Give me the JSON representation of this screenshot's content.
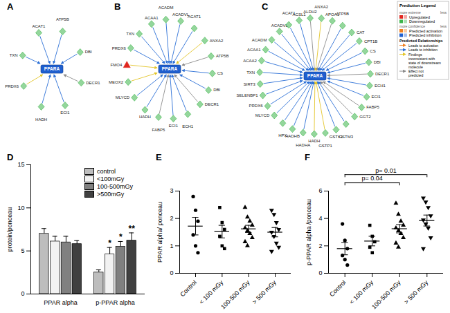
{
  "networks": [
    {
      "panel": "A",
      "center": {
        "label": "PPARA",
        "state": "Predicted inhibition"
      },
      "nodes": [
        {
          "label": "ACAT1",
          "state": "Downregulated",
          "relation": "Leads to inhibition"
        },
        {
          "label": "ATP5B",
          "state": "Downregulated",
          "relation": "Leads to inhibition"
        },
        {
          "label": "DBI",
          "state": "Downregulated",
          "relation": "Leads to inhibition"
        },
        {
          "label": "DECR1",
          "state": "Downregulated",
          "relation": "Effect not predicted"
        },
        {
          "label": "ECI1",
          "state": "Downregulated",
          "relation": "Leads to inhibition"
        },
        {
          "label": "HADH",
          "state": "Downregulated",
          "relation": "Leads to inhibition"
        },
        {
          "label": "PRDX6",
          "state": "Downregulated",
          "relation": "Findings inconsistent with state of downstream molecule"
        },
        {
          "label": "TXN",
          "state": "Downregulated",
          "relation": "Leads to inhibition"
        }
      ]
    },
    {
      "panel": "B",
      "center": {
        "label": "PPARA",
        "state": "Predicted inhibition"
      },
      "nodes": [
        {
          "label": "ACAA1",
          "state": "Downregulated",
          "relation": "Leads to inhibition"
        },
        {
          "label": "ACADM",
          "state": "Downregulated",
          "relation": "Leads to inhibition"
        },
        {
          "label": "ACADVL",
          "state": "Downregulated",
          "relation": "Leads to inhibition"
        },
        {
          "label": "ACAT1",
          "state": "Downregulated",
          "relation": "Leads to inhibition"
        },
        {
          "label": "ANXA2",
          "state": "Downregulated",
          "relation": "Findings inconsistent with state of downstream molecule"
        },
        {
          "label": "ATP5B",
          "state": "Downregulated",
          "relation": "Effect not predicted"
        },
        {
          "label": "CS",
          "state": "Downregulated",
          "relation": "Leads to inhibition"
        },
        {
          "label": "DBI",
          "state": "Downregulated",
          "relation": "Leads to inhibition"
        },
        {
          "label": "DECR1",
          "state": "Downregulated",
          "relation": "Effect not predicted"
        },
        {
          "label": "ECH1",
          "state": "Downregulated",
          "relation": "Leads to inhibition"
        },
        {
          "label": "ECI1",
          "state": "Downregulated",
          "relation": "Leads to inhibition"
        },
        {
          "label": "FABP5",
          "state": "Downregulated",
          "relation": "Effect not predicted"
        },
        {
          "label": "HADH",
          "state": "Downregulated",
          "relation": "Leads to inhibition"
        },
        {
          "label": "MLYCD",
          "state": "Downregulated",
          "relation": "Leads to inhibition"
        },
        {
          "label": "MEOX2",
          "state": "Downregulated",
          "relation": "Findings inconsistent with state of downstream molecule"
        },
        {
          "label": "FMO4",
          "state": "Upregulated",
          "relation": "Findings inconsistent with state of downstream molecule"
        },
        {
          "label": "PRDX6",
          "state": "Downregulated",
          "relation": "Leads to inhibition"
        },
        {
          "label": "TXN",
          "state": "Downregulated",
          "relation": "Leads to inhibition"
        }
      ]
    },
    {
      "panel": "C",
      "center": {
        "label": "PPARA",
        "state": "Predicted inhibition"
      },
      "nodes": [
        {
          "label": "ALDH2",
          "state": "Downregulated",
          "relation": "Effect not predicted"
        },
        {
          "label": "ANXA2",
          "state": "Downregulated",
          "relation": "Findings inconsistent with state of downstream molecule"
        },
        {
          "label": "APOA1",
          "state": "Downregulated",
          "relation": "Effect not predicted"
        },
        {
          "label": "ATP5B",
          "state": "Downregulated",
          "relation": "Leads to inhibition"
        },
        {
          "label": "CAT",
          "state": "Downregulated",
          "relation": "Leads to inhibition"
        },
        {
          "label": "CPT1B",
          "state": "Downregulated",
          "relation": "Leads to inhibition"
        },
        {
          "label": "CS",
          "state": "Downregulated",
          "relation": "Leads to inhibition"
        },
        {
          "label": "DBI",
          "state": "Downregulated",
          "relation": "Leads to inhibition"
        },
        {
          "label": "DECR1",
          "state": "Downregulated",
          "relation": "Effect not predicted"
        },
        {
          "label": "ECH1",
          "state": "Downregulated",
          "relation": "Leads to inhibition"
        },
        {
          "label": "ECI1",
          "state": "Downregulated",
          "relation": "Leads to inhibition"
        },
        {
          "label": "FABP5",
          "state": "Downregulated",
          "relation": "Effect not predicted"
        },
        {
          "label": "GGT2",
          "state": "Downregulated",
          "relation": "Effect not predicted"
        },
        {
          "label": "GSTM3",
          "state": "Downregulated",
          "relation": "Leads to inhibition"
        },
        {
          "label": "GSTK1",
          "state": "Downregulated",
          "relation": "Leads to inhibition"
        },
        {
          "label": "GSTP1",
          "state": "Downregulated",
          "relation": "Findings inconsistent with state of downstream molecule"
        },
        {
          "label": "HADH",
          "state": "Downregulated",
          "relation": "Findings inconsistent with state of downstream molecule"
        },
        {
          "label": "HADHA",
          "state": "Downregulated",
          "relation": "Leads to inhibition"
        },
        {
          "label": "HADHB",
          "state": "Downregulated",
          "relation": "Leads to inhibition"
        },
        {
          "label": "HPX",
          "state": "Downregulated",
          "relation": "Leads to inhibition"
        },
        {
          "label": "MLYCD",
          "state": "Downregulated",
          "relation": "Leads to inhibition"
        },
        {
          "label": "PRDX6",
          "state": "Downregulated",
          "relation": "Leads to inhibition"
        },
        {
          "label": "SELENBP1",
          "state": "Downregulated",
          "relation": "Leads to inhibition"
        },
        {
          "label": "SIRT3",
          "state": "Downregulated",
          "relation": "Leads to inhibition"
        },
        {
          "label": "TXN",
          "state": "Downregulated",
          "relation": "Leads to inhibition"
        },
        {
          "label": "ACAA2",
          "state": "Downregulated",
          "relation": "Leads to inhibition"
        },
        {
          "label": "ACAA1",
          "state": "Downregulated",
          "relation": "Leads to inhibition"
        },
        {
          "label": "ACADM",
          "state": "Downregulated",
          "relation": "Leads to inhibition"
        },
        {
          "label": "ACADVL",
          "state": "Downregulated",
          "relation": "Leads to inhibition"
        },
        {
          "label": "ACAT1",
          "state": "Downregulated",
          "relation": "Leads to inhibition"
        },
        {
          "label": "ACSL1",
          "state": "Downregulated",
          "relation": "Leads to inhibition"
        }
      ]
    }
  ],
  "legend": {
    "title": "Prediction Legend",
    "groups": [
      {
        "title": "more extreme",
        "end": "less",
        "items": [
          {
            "label": "Upregulated",
            "color": "#e0261f"
          },
          {
            "label": "Downregulated",
            "color": "#3cb54a"
          }
        ]
      },
      {
        "title": "more confidence",
        "end": "less",
        "items": [
          {
            "label": "Predicted activation",
            "color": "#f07f1f"
          },
          {
            "label": "Predicted inhibition",
            "color": "#1f5fcf"
          }
        ]
      }
    ],
    "relationships": {
      "title": "Predicted Relationships",
      "items": [
        {
          "label": "Leads to activation",
          "color": "#f07f1f"
        },
        {
          "label": "Leads to inhibition",
          "color": "#2b6fd6"
        },
        {
          "label": "Findings inconsistent with state of downstream molecule",
          "color": "#e3c52a"
        },
        {
          "label": "Effect not predicted",
          "color": "#8c8c8c"
        }
      ]
    }
  },
  "chart_data": [
    {
      "panel": "D",
      "type": "bar",
      "ylabel": "protein/ponceau",
      "categories": [
        "PPAR alpha",
        "p-PPAR alpha"
      ],
      "series": [
        {
          "name": "control",
          "color": "#bdbdbd",
          "values": [
            7.0,
            2.5
          ],
          "errors": [
            0.6,
            0.3
          ]
        },
        {
          "name": "<100mGy",
          "color": "#f2f2f2",
          "values": [
            6.1,
            4.6
          ],
          "errors": [
            0.6,
            0.8
          ]
        },
        {
          "name": "100-500mGy",
          "color": "#808080",
          "values": [
            6.0,
            5.5
          ],
          "errors": [
            0.7,
            0.6
          ]
        },
        {
          "name": ">500mGy",
          "color": "#404040",
          "values": [
            5.8,
            6.2
          ],
          "errors": [
            0.4,
            0.9
          ]
        }
      ],
      "ylim": [
        0,
        15
      ],
      "yticks": [
        0,
        5,
        10,
        15
      ],
      "legend": "top-right",
      "annotations": [
        {
          "category": "p-PPAR alpha",
          "series": "<100mGy",
          "text": "*"
        },
        {
          "category": "p-PPAR alpha",
          "series": "100-500mGy",
          "text": "*"
        },
        {
          "category": "p-PPAR alpha",
          "series": ">500mGy",
          "text": "**"
        }
      ]
    },
    {
      "panel": "E",
      "type": "scatter",
      "ylabel": "PPAR alpha/ ponceau",
      "categories": [
        "Control",
        "< 100 mGy",
        "100-500 mGy",
        "> 500 mGy"
      ],
      "markers": [
        "circle",
        "square",
        "triangle",
        "triangle-down"
      ],
      "values": [
        [
          2.8,
          2.3,
          1.9,
          1.4,
          1.0,
          0.75
        ],
        [
          2.4,
          1.85,
          1.6,
          1.35,
          1.0,
          0.9
        ],
        [
          2.4,
          2.05,
          1.9,
          1.75,
          1.65,
          1.55,
          1.45,
          1.3,
          1.15,
          1.0
        ],
        [
          2.3,
          2.15,
          1.85,
          1.6,
          1.5,
          1.35,
          1.1,
          0.95,
          0.8
        ]
      ],
      "mean": [
        1.72,
        1.52,
        1.62,
        1.5
      ],
      "sem": [
        0.32,
        0.23,
        0.13,
        0.17
      ],
      "ylim": [
        0,
        3
      ],
      "yticks": [
        0,
        1,
        2,
        3
      ]
    },
    {
      "panel": "F",
      "type": "scatter",
      "ylabel": "p-PPAR alpha /ponceau",
      "categories": [
        "Control",
        "< 100 mGy",
        "100-500 mGy",
        "> 500 mGy"
      ],
      "markers": [
        "circle",
        "square",
        "triangle",
        "triangle-down"
      ],
      "values": [
        [
          3.6,
          2.4,
          1.8,
          1.3,
          1.0,
          0.6
        ],
        [
          3.5,
          2.7,
          2.3,
          1.9,
          1.5
        ],
        [
          5.1,
          4.3,
          3.8,
          3.5,
          3.3,
          3.1,
          2.9,
          2.6,
          2.2,
          1.9
        ],
        [
          5.5,
          5.2,
          4.8,
          4.2,
          3.9,
          3.6,
          3.3,
          2.6,
          1.8
        ]
      ],
      "mean": [
        1.8,
        2.35,
        3.25,
        3.85
      ],
      "sem": [
        0.45,
        0.35,
        0.3,
        0.4
      ],
      "ylim": [
        0,
        6
      ],
      "yticks": [
        0,
        2,
        4,
        6
      ],
      "annotations": [
        {
          "from": "Control",
          "to": "100-500 mGy",
          "text": "p= 0.04"
        },
        {
          "from": "Control",
          "to": "> 500 mGy",
          "text": "p= 0.01"
        }
      ]
    }
  ]
}
